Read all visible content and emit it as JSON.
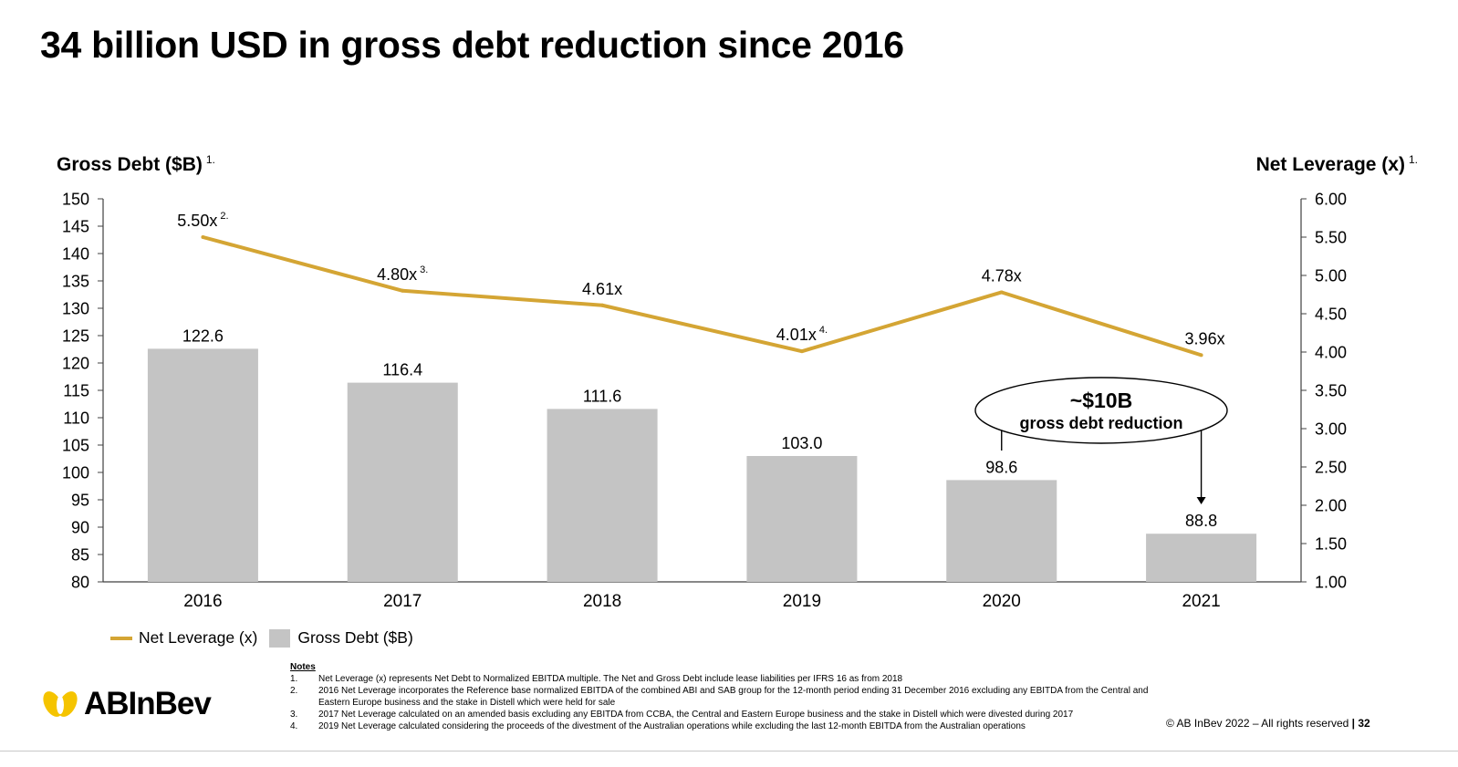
{
  "page": {
    "title": "34 billion USD in gross debt reduction since 2016"
  },
  "colors": {
    "bars": "#C4C4C4",
    "line": "#D4A534",
    "axis": "#404040",
    "logo_accent": "#F5C400"
  },
  "chart_data": {
    "type": "bar",
    "categories": [
      "2016",
      "2017",
      "2018",
      "2019",
      "2020",
      "2021"
    ],
    "series": [
      {
        "name": "Gross Debt ($B)",
        "type": "bar",
        "axis": "left",
        "values": [
          122.6,
          116.4,
          111.6,
          103.0,
          98.6,
          88.8
        ],
        "labels": [
          "122.6",
          "116.4",
          "111.6",
          "103.0",
          "98.6",
          "88.8"
        ]
      },
      {
        "name": "Net Leverage (x)",
        "type": "line",
        "axis": "right",
        "values": [
          5.5,
          4.8,
          4.61,
          4.01,
          4.78,
          3.96
        ],
        "labels": [
          "5.50x",
          "4.80x",
          "4.61x",
          "4.01x",
          "4.78x",
          "3.96x"
        ],
        "label_notes": [
          "2.",
          "3.",
          "",
          "4.",
          "",
          ""
        ]
      }
    ],
    "y_left": {
      "label": "Gross Debt ($B)",
      "note": "1.",
      "range": [
        80,
        150
      ],
      "ticks": [
        "80",
        "85",
        "90",
        "95",
        "100",
        "105",
        "110",
        "115",
        "120",
        "125",
        "130",
        "135",
        "140",
        "145",
        "150"
      ]
    },
    "y_right": {
      "label": "Net Leverage (x)",
      "note": "1.",
      "range": [
        1.0,
        6.0
      ],
      "ticks": [
        "1.00",
        "1.50",
        "2.00",
        "2.50",
        "3.00",
        "3.50",
        "4.00",
        "4.50",
        "5.00",
        "5.50",
        "6.00"
      ]
    },
    "annotation": {
      "headline": "~$10B",
      "subtext": "gross debt reduction",
      "from_category": "2020",
      "to_category": "2021"
    },
    "legend_position": "bottom-left"
  },
  "legend": {
    "line_label": "Net Leverage (x)",
    "bar_label": "Gross Debt ($B)"
  },
  "notes": {
    "title": "Notes",
    "items": [
      {
        "num": "1.",
        "text": "Net Leverage (x) represents Net Debt to Normalized EBITDA multiple. The Net and Gross Debt include lease liabilities per IFRS 16 as from 2018"
      },
      {
        "num": "2.",
        "text": "2016 Net Leverage incorporates the Reference base normalized EBITDA of the combined ABI and SAB group for the 12-month period ending 31 December 2016 excluding any EBITDA from the Central and Eastern Europe business and the stake in Distell which were held for sale"
      },
      {
        "num": "3.",
        "text": "2017 Net Leverage calculated on an amended basis excluding any EBITDA from CCBA, the Central and Eastern Europe business and the stake in Distell which were divested during 2017"
      },
      {
        "num": "4.",
        "text": "2019 Net Leverage calculated considering the proceeds of the divestment of the Australian operations while excluding the last 12-month EBITDA from the Australian operations"
      }
    ]
  },
  "footer": {
    "logo_text": "ABInBev",
    "copyright": "© AB InBev 2022 – All rights reserved",
    "separator": "|",
    "page_number": "32"
  }
}
